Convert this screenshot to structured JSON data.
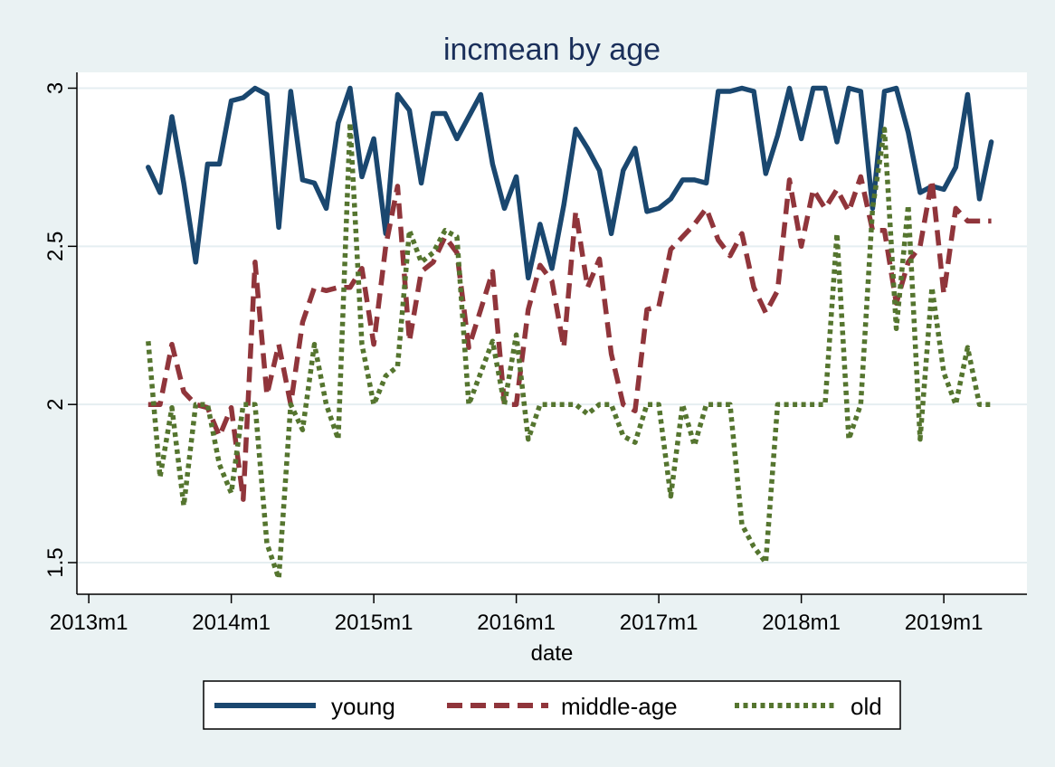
{
  "chart_data": {
    "type": "line",
    "title": "incmean by age",
    "xlabel": "date",
    "ylabel": "",
    "ylim": [
      1.4,
      3.05
    ],
    "xlim": [
      "2012-12",
      "2019-08"
    ],
    "y_ticks": [
      "1.5",
      "2",
      "2.5",
      "3"
    ],
    "x_ticks": [
      "2013m1",
      "2014m1",
      "2015m1",
      "2016m1",
      "2017m1",
      "2018m1",
      "2019m1"
    ],
    "grid": true,
    "legend_position": "bottom",
    "x": [
      "2013-06",
      "2013-07",
      "2013-08",
      "2013-09",
      "2013-10",
      "2013-11",
      "2013-12",
      "2014-01",
      "2014-02",
      "2014-03",
      "2014-04",
      "2014-05",
      "2014-06",
      "2014-07",
      "2014-08",
      "2014-09",
      "2014-10",
      "2014-11",
      "2014-12",
      "2015-01",
      "2015-02",
      "2015-03",
      "2015-04",
      "2015-05",
      "2015-06",
      "2015-07",
      "2015-08",
      "2015-09",
      "2015-10",
      "2015-11",
      "2015-12",
      "2016-01",
      "2016-02",
      "2016-03",
      "2016-04",
      "2016-05",
      "2016-06",
      "2016-07",
      "2016-08",
      "2016-09",
      "2016-10",
      "2016-11",
      "2016-12",
      "2017-01",
      "2017-02",
      "2017-03",
      "2017-04",
      "2017-05",
      "2017-06",
      "2017-07",
      "2017-08",
      "2017-09",
      "2017-10",
      "2017-11",
      "2017-12",
      "2018-01",
      "2018-02",
      "2018-03",
      "2018-04",
      "2018-05",
      "2018-06",
      "2018-07",
      "2018-08",
      "2018-09",
      "2018-10",
      "2018-11",
      "2018-12",
      "2019-01",
      "2019-02",
      "2019-03",
      "2019-04",
      "2019-05"
    ],
    "series": [
      {
        "name": "young",
        "color": "#1a476f",
        "dash": "solid",
        "values": [
          2.75,
          2.67,
          2.91,
          2.7,
          2.45,
          2.76,
          2.76,
          2.96,
          2.97,
          3.0,
          2.98,
          2.56,
          2.99,
          2.71,
          2.7,
          2.62,
          2.89,
          3.0,
          2.72,
          2.84,
          2.54,
          2.98,
          2.93,
          2.7,
          2.92,
          2.92,
          2.84,
          2.91,
          2.98,
          2.76,
          2.62,
          2.72,
          2.4,
          2.57,
          2.43,
          2.63,
          2.87,
          2.81,
          2.74,
          2.54,
          2.74,
          2.81,
          2.61,
          2.62,
          2.65,
          2.71,
          2.71,
          2.7,
          2.99,
          2.99,
          3.0,
          2.99,
          2.73,
          2.85,
          3.0,
          2.84,
          3.0,
          3.0,
          2.83,
          3.0,
          2.99,
          2.62,
          2.99,
          3.0,
          2.86,
          2.67,
          2.69,
          2.68,
          2.75,
          2.98,
          2.65,
          2.83
        ]
      },
      {
        "name": "middle-age",
        "color": "#90353b",
        "dash": "dashed",
        "values": [
          2.0,
          2.0,
          2.19,
          2.04,
          2.0,
          1.99,
          1.9,
          1.99,
          1.7,
          2.45,
          2.03,
          2.19,
          2.0,
          2.26,
          2.37,
          2.36,
          2.37,
          2.37,
          2.43,
          2.19,
          2.5,
          2.69,
          2.2,
          2.42,
          2.45,
          2.53,
          2.48,
          2.18,
          2.3,
          2.42,
          2.0,
          2.0,
          2.3,
          2.44,
          2.39,
          2.18,
          2.61,
          2.37,
          2.46,
          2.16,
          2.0,
          1.98,
          2.3,
          2.31,
          2.49,
          2.53,
          2.57,
          2.62,
          2.52,
          2.47,
          2.54,
          2.37,
          2.29,
          2.36,
          2.71,
          2.5,
          2.68,
          2.62,
          2.68,
          2.61,
          2.72,
          2.55,
          2.55,
          2.32,
          2.45,
          2.5,
          2.71,
          2.35,
          2.62,
          2.58,
          2.58,
          2.58
        ]
      },
      {
        "name": "old",
        "color": "#55752f",
        "dash": "dotted",
        "values": [
          2.2,
          1.77,
          1.99,
          1.68,
          2.0,
          2.0,
          1.81,
          1.72,
          2.0,
          2.0,
          1.56,
          1.45,
          2.0,
          1.92,
          2.19,
          2.0,
          1.89,
          2.89,
          2.19,
          2.0,
          2.09,
          2.12,
          2.55,
          2.45,
          2.48,
          2.55,
          2.53,
          2.0,
          2.1,
          2.2,
          2.0,
          2.22,
          1.89,
          2.0,
          2.0,
          2.0,
          2.0,
          1.97,
          2.0,
          2.0,
          1.9,
          1.88,
          2.0,
          2.0,
          1.71,
          2.0,
          1.87,
          2.0,
          2.0,
          2.0,
          1.62,
          1.55,
          1.5,
          2.0,
          2.0,
          2.0,
          2.0,
          2.0,
          2.54,
          1.89,
          2.0,
          2.62,
          2.87,
          2.24,
          2.63,
          1.89,
          2.37,
          2.1,
          2.0,
          2.18,
          2.0,
          2.0
        ]
      }
    ]
  }
}
